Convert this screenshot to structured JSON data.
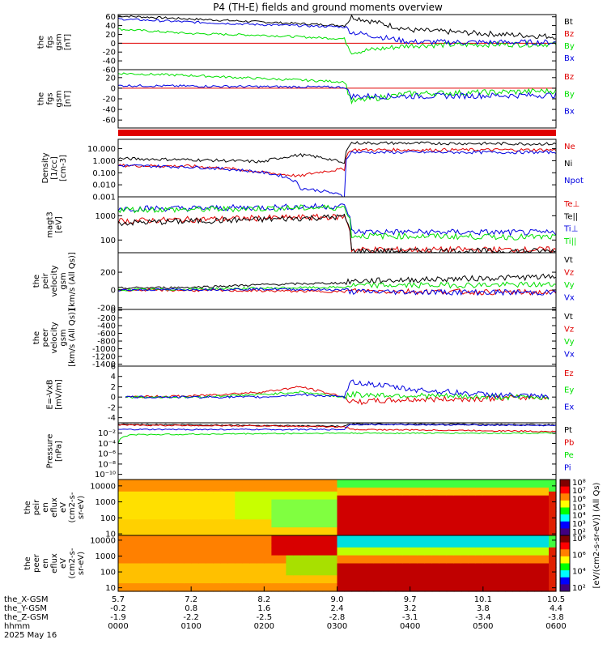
{
  "title": "P4 (TH-E) fields and ground moments overview",
  "date_label": "2025 May 16",
  "colors": {
    "black": "#000000",
    "red": "#e00000",
    "green": "#00e000",
    "blue": "#0000e0"
  },
  "chart_data": [
    {
      "type": "line",
      "panel": "fgs_1",
      "ylabel": [
        "the",
        "fgs",
        "gsm",
        "[nT]"
      ],
      "ylim": [
        -60,
        65
      ],
      "yticks": [
        "60",
        "40",
        "20",
        "0",
        "-20",
        "-40",
        "-60"
      ],
      "ytick_values": [
        60,
        40,
        20,
        0,
        -20,
        -40,
        -60
      ],
      "legend": [
        {
          "name": "Bt",
          "color": "black"
        },
        {
          "name": "Bz",
          "color": "red"
        },
        {
          "name": "By",
          "color": "green"
        },
        {
          "name": "Bx",
          "color": "blue"
        }
      ],
      "series": [
        {
          "name": "Bt",
          "color": "black",
          "x": [
            0,
            100,
            200,
            310,
            320,
            400,
            500,
            600
          ],
          "y": [
            62,
            55,
            48,
            40,
            60,
            30,
            22,
            15
          ]
        },
        {
          "name": "Bz",
          "color": "red",
          "x": [
            0,
            600
          ],
          "y": [
            0,
            0
          ]
        },
        {
          "name": "By",
          "color": "green",
          "x": [
            0,
            100,
            200,
            310,
            320,
            400,
            500,
            600
          ],
          "y": [
            32,
            22,
            18,
            10,
            -20,
            -5,
            -3,
            -2
          ]
        },
        {
          "name": "Bx",
          "color": "blue",
          "x": [
            0,
            100,
            200,
            310,
            320,
            400,
            500,
            600
          ],
          "y": [
            55,
            48,
            42,
            37,
            25,
            3,
            2,
            2
          ]
        }
      ]
    },
    {
      "type": "line",
      "panel": "fgs_2",
      "ylabel": [
        "the",
        "fgs",
        "gsm",
        "[nT]"
      ],
      "ylim": [
        -75,
        35
      ],
      "yticks": [
        "20",
        "0",
        "-20",
        "-40",
        "-60"
      ],
      "ytick_values": [
        20,
        0,
        -20,
        -40,
        -60
      ],
      "legend": [
        {
          "name": "Bz",
          "color": "red"
        },
        {
          "name": "By",
          "color": "green"
        },
        {
          "name": "Bx",
          "color": "blue"
        }
      ],
      "series": [
        {
          "name": "Bz",
          "color": "red",
          "x": [
            0,
            600
          ],
          "y": [
            0,
            0
          ]
        },
        {
          "name": "By",
          "color": "green",
          "x": [
            0,
            100,
            200,
            310,
            320,
            400,
            500,
            600
          ],
          "y": [
            28,
            24,
            18,
            12,
            -25,
            -10,
            -8,
            -5
          ]
        },
        {
          "name": "Bx",
          "color": "blue",
          "x": [
            0,
            100,
            200,
            310,
            320,
            400,
            500,
            600
          ],
          "y": [
            5,
            4,
            3,
            2,
            -15,
            -15,
            -14,
            -13
          ]
        }
      ]
    },
    {
      "type": "line",
      "panel": "density",
      "ylabel": [
        "Density",
        "[1/cc]",
        "[cm-3]"
      ],
      "yscale": "log",
      "ylim": [
        0.001,
        60
      ],
      "yticks": [
        "10.000",
        "1.000",
        "0.100",
        "0.010",
        "0.001"
      ],
      "ytick_values": [
        10,
        1,
        0.1,
        0.01,
        0.001
      ],
      "legend": [
        {
          "name": "Ne",
          "color": "red"
        },
        {
          "name": "Ni",
          "color": "black"
        },
        {
          "name": "Npot",
          "color": "blue"
        }
      ],
      "series": [
        {
          "name": "Ne",
          "color": "red",
          "x": [
            0,
            100,
            200,
            250,
            310,
            320,
            600
          ],
          "y": [
            0.4,
            0.35,
            0.1,
            0.05,
            0.2,
            8,
            8
          ]
        },
        {
          "name": "Ni",
          "color": "black",
          "x": [
            0,
            100,
            200,
            250,
            310,
            320,
            600
          ],
          "y": [
            1.5,
            1.2,
            0.8,
            3,
            0.5,
            30,
            25
          ]
        },
        {
          "name": "Npot",
          "color": "blue",
          "x": [
            0,
            100,
            200,
            250,
            310,
            320,
            600
          ],
          "y": [
            0.4,
            0.3,
            0.1,
            0.005,
            0.001,
            5,
            5
          ]
        }
      ]
    },
    {
      "type": "line",
      "panel": "temperature",
      "ylabel": [
        "magt3",
        "[eV]"
      ],
      "yscale": "log",
      "ylim": [
        30,
        6000
      ],
      "yticks": [
        "1000",
        "100"
      ],
      "ytick_values": [
        1000,
        100
      ],
      "legend": [
        {
          "name": "Te⊥",
          "color": "red"
        },
        {
          "name": "Te||",
          "color": "black"
        },
        {
          "name": "Ti⊥",
          "color": "blue"
        },
        {
          "name": "Ti||",
          "color": "green"
        }
      ],
      "series": [
        {
          "name": "Te⊥",
          "color": "red",
          "x": [
            0,
            100,
            200,
            310,
            320,
            600
          ],
          "y": [
            600,
            700,
            800,
            900,
            40,
            40
          ]
        },
        {
          "name": "Te||",
          "color": "black",
          "x": [
            0,
            100,
            200,
            310,
            320,
            600
          ],
          "y": [
            500,
            600,
            700,
            900,
            35,
            35
          ]
        },
        {
          "name": "Ti⊥",
          "color": "blue",
          "x": [
            0,
            100,
            200,
            310,
            320,
            600
          ],
          "y": [
            2000,
            2000,
            2200,
            2500,
            220,
            200
          ]
        },
        {
          "name": "Ti||",
          "color": "green",
          "x": [
            0,
            100,
            200,
            310,
            320,
            600
          ],
          "y": [
            1800,
            1800,
            2000,
            2200,
            150,
            130
          ]
        }
      ]
    },
    {
      "type": "line",
      "panel": "peir_velocity",
      "ylabel": [
        "the",
        "peir",
        "velocity",
        "gsm",
        "[km/s (All Qs)]"
      ],
      "ylim": [
        -220,
        420
      ],
      "yticks": [
        "200",
        "0",
        "-200"
      ],
      "ytick_values": [
        200,
        0,
        -200
      ],
      "legend": [
        {
          "name": "Vt",
          "color": "black"
        },
        {
          "name": "Vz",
          "color": "red"
        },
        {
          "name": "Vy",
          "color": "green"
        },
        {
          "name": "Vx",
          "color": "blue"
        }
      ],
      "series": [
        {
          "name": "Vt",
          "color": "black",
          "x": [
            0,
            100,
            200,
            310,
            320,
            600
          ],
          "y": [
            20,
            30,
            60,
            80,
            100,
            150
          ]
        },
        {
          "name": "Vz",
          "color": "red",
          "x": [
            0,
            100,
            200,
            310,
            320,
            600
          ],
          "y": [
            0,
            -5,
            -10,
            -20,
            -10,
            -30
          ]
        },
        {
          "name": "Vy",
          "color": "green",
          "x": [
            0,
            100,
            200,
            310,
            320,
            600
          ],
          "y": [
            0,
            10,
            20,
            30,
            50,
            60
          ]
        },
        {
          "name": "Vx",
          "color": "blue",
          "x": [
            0,
            100,
            200,
            310,
            320,
            600
          ],
          "y": [
            0,
            5,
            10,
            0,
            -20,
            -30
          ]
        }
      ]
    },
    {
      "type": "line",
      "panel": "peer_velocity",
      "ylabel": [
        "the",
        "peer",
        "velocity",
        "gsm",
        "[km/s (All Qs)]"
      ],
      "ylim": [
        -1450,
        20
      ],
      "yticks": [
        "0",
        "-200",
        "-400",
        "-600",
        "-800",
        "-1000",
        "-1200",
        "-1400"
      ],
      "ytick_values": [
        0,
        -200,
        -400,
        -600,
        -800,
        -1000,
        -1200,
        -1400
      ],
      "legend": [
        {
          "name": "Vt",
          "color": "black"
        },
        {
          "name": "Vz",
          "color": "red"
        },
        {
          "name": "Vy",
          "color": "green"
        },
        {
          "name": "Vx",
          "color": "blue"
        }
      ],
      "series": []
    },
    {
      "type": "line",
      "panel": "efield",
      "ylabel": [
        "E=-VxB",
        "[mV/m]"
      ],
      "ylim": [
        -5,
        6
      ],
      "yticks": [
        "6",
        "4",
        "2",
        "0",
        "-2",
        "-4"
      ],
      "ytick_values": [
        6,
        4,
        2,
        0,
        -2,
        -4
      ],
      "legend": [
        {
          "name": "Ez",
          "color": "red"
        },
        {
          "name": "Ey",
          "color": "green"
        },
        {
          "name": "Ex",
          "color": "blue"
        }
      ],
      "series": [
        {
          "name": "Ez",
          "color": "red",
          "x": [
            10,
            100,
            200,
            250,
            310,
            320,
            400,
            500,
            590
          ],
          "y": [
            0,
            0.2,
            1,
            2,
            0,
            -1,
            -0.5,
            -0.3,
            0
          ]
        },
        {
          "name": "Ey",
          "color": "green",
          "x": [
            10,
            100,
            200,
            250,
            310,
            320,
            400,
            500,
            590
          ],
          "y": [
            0,
            0,
            0.5,
            1,
            0,
            0.5,
            0.3,
            0,
            0
          ]
        },
        {
          "name": "Ex",
          "color": "blue",
          "x": [
            10,
            100,
            200,
            250,
            310,
            320,
            400,
            500,
            590
          ],
          "y": [
            0,
            0,
            0,
            0.5,
            0,
            3,
            1.5,
            0.5,
            0
          ]
        }
      ]
    },
    {
      "type": "line",
      "panel": "pressure",
      "ylabel": [
        "Pressure",
        "[nPa]"
      ],
      "yscale": "log",
      "ylim": [
        1e-11,
        1
      ],
      "yticks": [
        "10⁻²",
        "10⁻⁴",
        "10⁻⁶",
        "10⁻⁸",
        "10⁻¹⁰"
      ],
      "ytick_values": [
        0.01,
        0.0001,
        1e-06,
        1e-08,
        1e-10
      ],
      "legend": [
        {
          "name": "Pt",
          "color": "black"
        },
        {
          "name": "Pb",
          "color": "red"
        },
        {
          "name": "Pe",
          "color": "green"
        },
        {
          "name": "Pi",
          "color": "blue"
        }
      ],
      "series": [
        {
          "name": "Pt",
          "color": "black",
          "x": [
            0,
            100,
            200,
            310,
            320,
            600
          ],
          "y": [
            0.5,
            0.4,
            0.3,
            0.2,
            0.6,
            0.4
          ]
        },
        {
          "name": "Pb",
          "color": "red",
          "x": [
            0,
            100,
            200,
            310,
            320,
            600
          ],
          "y": [
            0.35,
            0.3,
            0.25,
            0.15,
            0.05,
            0.02
          ]
        },
        {
          "name": "Pe",
          "color": "green",
          "x": [
            0,
            20,
            100,
            200,
            310,
            320,
            600
          ],
          "y": [
            0.0001,
            0.005,
            0.006,
            0.008,
            0.01,
            0.01,
            0.01
          ]
        },
        {
          "name": "Pi",
          "color": "blue",
          "x": [
            0,
            100,
            200,
            310,
            320,
            600
          ],
          "y": [
            0.05,
            0.05,
            0.05,
            0.05,
            0.5,
            0.3
          ]
        }
      ]
    },
    {
      "type": "heatmap",
      "panel": "peir_spectrogram",
      "ylabel": [
        "the",
        "peir",
        "en",
        "eflux",
        "eV",
        "(cm2-s-",
        "sr-eV)"
      ],
      "yscale": "log",
      "ylim": [
        8,
        25000
      ],
      "yticks": [
        "10000",
        "1000",
        "100",
        "10"
      ],
      "ytick_values": [
        10000,
        1000,
        100,
        10
      ]
    },
    {
      "type": "heatmap",
      "panel": "peer_spectrogram",
      "ylabel": [
        "the",
        "peer",
        "en",
        "eflux",
        "eV",
        "(cm2-s-",
        "sr-eV)"
      ],
      "yscale": "log",
      "ylim": [
        6,
        20000
      ],
      "yticks": [
        "10000",
        "1000",
        "100",
        "10"
      ],
      "ytick_values": [
        10000,
        1000,
        100,
        10
      ]
    }
  ],
  "colorbar": {
    "label": "[eV/(cm2-s-sr-eV)] (All Qs)",
    "ticks": [
      "10⁸",
      "10⁷",
      "10⁶",
      "10⁵",
      "10⁴",
      "10³",
      "10²"
    ],
    "ticks2": [
      "10⁸",
      "10⁶",
      "10⁴",
      "10²"
    ]
  },
  "xaxis": {
    "row_labels": [
      "the_X-GSM",
      "the_Y-GSM",
      "the_Z-GSM",
      "hhmm",
      "2025 May 16"
    ],
    "ticks": [
      {
        "x": 0,
        "X": "5.7",
        "Y": "-0.2",
        "Z": "-1.9",
        "hhmm": "0000"
      },
      {
        "x": 100,
        "X": "7.2",
        "Y": "0.8",
        "Z": "-2.2",
        "hhmm": "0100"
      },
      {
        "x": 200,
        "X": "8.2",
        "Y": "1.6",
        "Z": "-2.5",
        "hhmm": "0200"
      },
      {
        "x": 300,
        "X": "9.0",
        "Y": "2.4",
        "Z": "-2.8",
        "hhmm": "0300"
      },
      {
        "x": 400,
        "X": "9.7",
        "Y": "3.2",
        "Z": "-3.1",
        "hhmm": "0400"
      },
      {
        "x": 500,
        "X": "10.1",
        "Y": "3.8",
        "Z": "-3.4",
        "hhmm": "0500"
      },
      {
        "x": 600,
        "X": "10.5",
        "Y": "4.4",
        "Z": "-3.8",
        "hhmm": "0600"
      }
    ]
  }
}
